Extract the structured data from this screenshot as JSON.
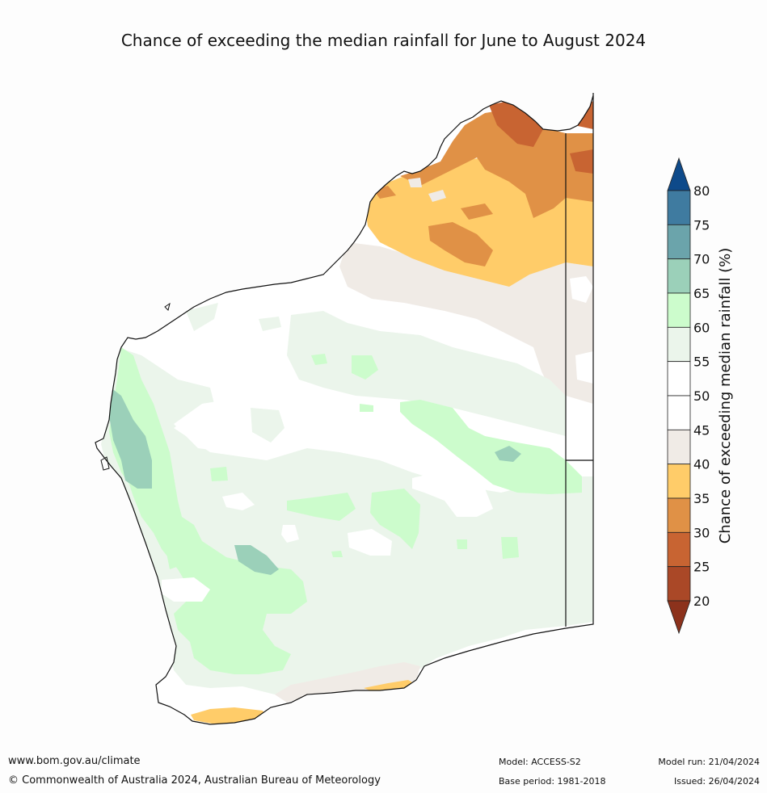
{
  "title": "Chance of exceeding the median rainfall for June to August 2024",
  "colorbar": {
    "label": "Chance of exceeding median rainfall (%)",
    "ticks": [
      "80",
      "75",
      "70",
      "65",
      "60",
      "55",
      "50",
      "45",
      "40",
      "35",
      "30",
      "25",
      "20"
    ],
    "bands": [
      {
        "from": 75,
        "to": 80,
        "color": "#3f7ba0"
      },
      {
        "from": 70,
        "to": 75,
        "color": "#6ba4ab"
      },
      {
        "from": 65,
        "to": 70,
        "color": "#9bd0b9"
      },
      {
        "from": 60,
        "to": 65,
        "color": "#ccfccc"
      },
      {
        "from": 55,
        "to": 60,
        "color": "#ebf5eb"
      },
      {
        "from": 50,
        "to": 55,
        "color": "#ffffff"
      },
      {
        "from": 45,
        "to": 50,
        "color": "#ffffff"
      },
      {
        "from": 40,
        "to": 45,
        "color": "#f0ebe6"
      },
      {
        "from": 35,
        "to": 40,
        "color": "#ffcc69"
      },
      {
        "from": 30,
        "to": 35,
        "color": "#e09146"
      },
      {
        "from": 25,
        "to": 30,
        "color": "#c86432"
      },
      {
        "from": 20,
        "to": 25,
        "color": "#aa4827"
      }
    ],
    "over_color": "#0e4a8a",
    "under_color": "#8c321c"
  },
  "footer": {
    "website": "www.bom.gov.au/climate",
    "copyright": "© Commonwealth of Australia 2024, Australian Bureau of Meteorology",
    "model": "Model: ACCESS-S2",
    "base_period": "Base period: 1981-2018",
    "model_run": "Model run: 21/04/2024",
    "issued": "Issued: 26/04/2024"
  }
}
